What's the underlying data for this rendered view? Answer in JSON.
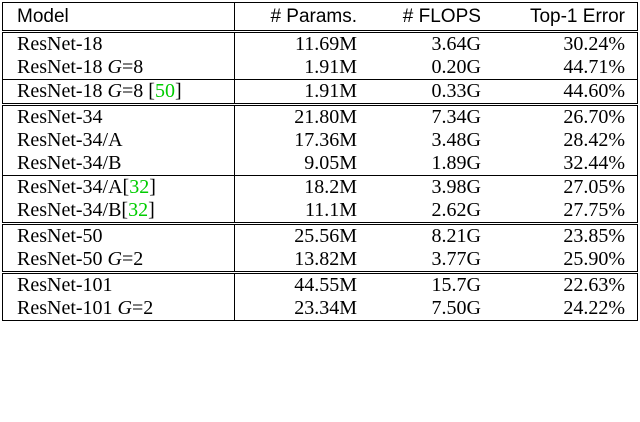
{
  "table": {
    "columns": [
      "Model",
      "# Params.",
      "# FLOPS",
      "Top-1 Error"
    ],
    "groups": [
      {
        "rule": "double",
        "rows": [
          {
            "model": [
              {
                "text": "ResNet-18"
              }
            ],
            "cells": [
              "11.69M",
              "3.64G",
              "30.24%"
            ]
          },
          {
            "model": [
              {
                "text": "ResNet-18 "
              },
              {
                "text": "G",
                "italic": true
              },
              {
                "text": "=8"
              }
            ],
            "cells": [
              "1.91M",
              "0.20G",
              "44.71%"
            ]
          }
        ]
      },
      {
        "rule": "single",
        "rows": [
          {
            "model": [
              {
                "text": "ResNet-18 "
              },
              {
                "text": "G",
                "italic": true
              },
              {
                "text": "=8 ["
              },
              {
                "text": "50",
                "color": "#00cc00"
              },
              {
                "text": "]"
              }
            ],
            "cells": [
              "1.91M",
              "0.33G",
              "44.60%"
            ]
          }
        ]
      },
      {
        "rule": "double",
        "rows": [
          {
            "model": [
              {
                "text": "ResNet-34"
              }
            ],
            "cells": [
              "21.80M",
              "7.34G",
              "26.70%"
            ]
          },
          {
            "model": [
              {
                "text": "ResNet-34/A"
              }
            ],
            "cells": [
              "17.36M",
              "3.48G",
              "28.42%"
            ]
          },
          {
            "model": [
              {
                "text": "ResNet-34/B"
              }
            ],
            "cells": [
              "9.05M",
              "1.89G",
              "32.44%"
            ]
          }
        ]
      },
      {
        "rule": "single",
        "rows": [
          {
            "model": [
              {
                "text": "ResNet-34/A["
              },
              {
                "text": "32",
                "color": "#00cc00"
              },
              {
                "text": "]"
              }
            ],
            "cells": [
              "18.2M",
              "3.98G",
              "27.05%"
            ]
          },
          {
            "model": [
              {
                "text": "ResNet-34/B["
              },
              {
                "text": "32",
                "color": "#00cc00"
              },
              {
                "text": "]"
              }
            ],
            "cells": [
              "11.1M",
              "2.62G",
              "27.75%"
            ]
          }
        ]
      },
      {
        "rule": "double",
        "rows": [
          {
            "model": [
              {
                "text": "ResNet-50"
              }
            ],
            "cells": [
              "25.56M",
              "8.21G",
              "23.85%"
            ]
          },
          {
            "model": [
              {
                "text": "ResNet-50 "
              },
              {
                "text": "G",
                "italic": true
              },
              {
                "text": "=2"
              }
            ],
            "cells": [
              "13.82M",
              "3.77G",
              "25.90%"
            ]
          }
        ]
      },
      {
        "rule": "double",
        "rows": [
          {
            "model": [
              {
                "text": "ResNet-101"
              }
            ],
            "cells": [
              "44.55M",
              "15.7G",
              "22.63%"
            ]
          },
          {
            "model": [
              {
                "text": "ResNet-101 "
              },
              {
                "text": "G",
                "italic": true
              },
              {
                "text": "=2"
              }
            ],
            "cells": [
              "23.34M",
              "7.50G",
              "24.22%"
            ]
          }
        ]
      }
    ]
  }
}
